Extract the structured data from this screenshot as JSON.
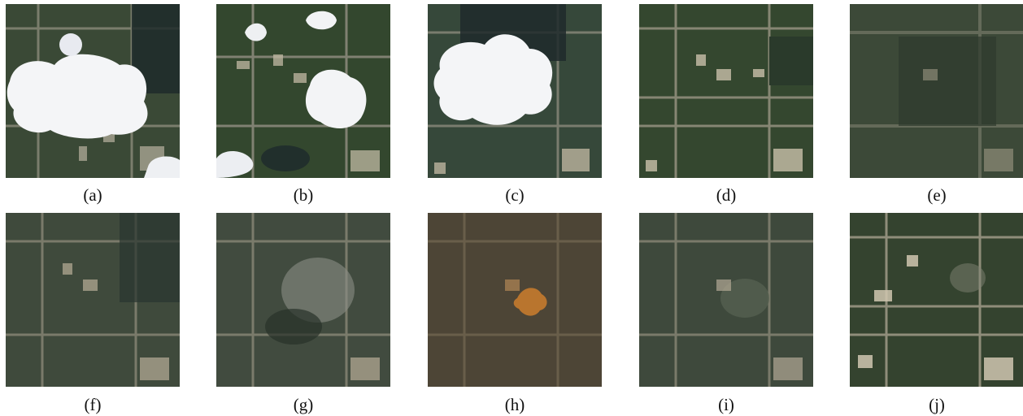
{
  "figure": {
    "panels": [
      {
        "id": "a",
        "caption": "(a)",
        "content": "cloud-cover-heavy",
        "tint": "#3b4a3a"
      },
      {
        "id": "b",
        "caption": "(b)",
        "content": "cloud-cover-scattered",
        "tint": "#34482f"
      },
      {
        "id": "c",
        "caption": "(c)",
        "content": "cloud-cover-center",
        "tint": "#37493a"
      },
      {
        "id": "d",
        "caption": "(d)",
        "content": "clear-ground-truth",
        "tint": "#34472f"
      },
      {
        "id": "e",
        "caption": "(e)",
        "content": "blurred-reconstruction",
        "tint": "#3d4a38"
      },
      {
        "id": "f",
        "caption": "(f)",
        "content": "reconstruction-hazy",
        "tint": "#3f4a3c"
      },
      {
        "id": "g",
        "caption": "(g)",
        "content": "reconstruction-haze-center",
        "tint": "#414b3f"
      },
      {
        "id": "h",
        "caption": "(h)",
        "content": "reconstruction-orange-artifact",
        "tint": "#4e4535"
      },
      {
        "id": "i",
        "caption": "(i)",
        "content": "reconstruction-smudge",
        "tint": "#3e493c"
      },
      {
        "id": "j",
        "caption": "(j)",
        "content": "reconstruction-sharp",
        "tint": "#34432f"
      }
    ]
  }
}
